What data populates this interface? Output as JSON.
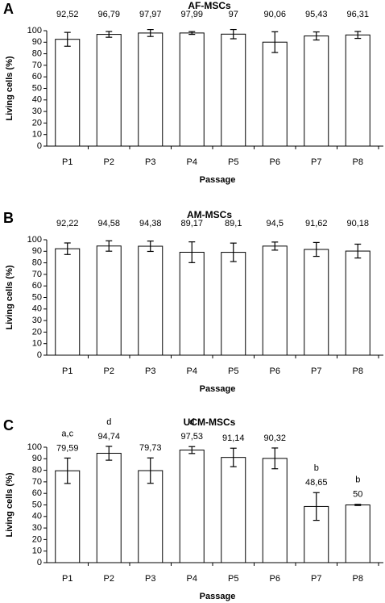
{
  "chart_data": [
    {
      "type": "bar",
      "panel_label": "A",
      "title": "AF-MSCs",
      "x_label": "Passage",
      "y_label": "Living cells (%)",
      "categories": [
        "P1",
        "P2",
        "P3",
        "P4",
        "P5",
        "P6",
        "P7",
        "P8"
      ],
      "values": [
        92.52,
        96.79,
        97.97,
        97.99,
        97,
        90.06,
        95.43,
        96.31
      ],
      "value_labels": [
        "92,52",
        "96,79",
        "97,97",
        "97,99",
        "97",
        "90,06",
        "95,43",
        "96,31"
      ],
      "errors": [
        6,
        2.5,
        3,
        1.2,
        4,
        9,
        3.5,
        3
      ],
      "color": "#ffffff",
      "ylim": [
        0,
        100
      ],
      "yticks": [
        0,
        10,
        20,
        30,
        40,
        50,
        60,
        70,
        80,
        90,
        100
      ]
    },
    {
      "type": "bar",
      "panel_label": "B",
      "title": "AM-MSCs",
      "x_label": "Passage",
      "y_label": "Living cells (%)",
      "categories": [
        "P1",
        "P2",
        "P3",
        "P4",
        "P5",
        "P6",
        "P7",
        "P8"
      ],
      "values": [
        92.22,
        94.58,
        94.38,
        89.17,
        89.1,
        94.5,
        91.62,
        90.18
      ],
      "value_labels": [
        "92,22",
        "94,58",
        "94,38",
        "89,17",
        "89,1",
        "94,5",
        "91,62",
        "90,18"
      ],
      "errors": [
        5,
        4.5,
        4.5,
        9,
        8,
        3.5,
        6,
        6
      ],
      "color": "#ffffff",
      "ylim": [
        0,
        100
      ],
      "yticks": [
        0,
        10,
        20,
        30,
        40,
        50,
        60,
        70,
        80,
        90,
        100
      ]
    },
    {
      "type": "bar",
      "panel_label": "C",
      "title": "UCM-MSCs",
      "x_label": "Passage",
      "y_label": "Living cells (%)",
      "categories": [
        "P1",
        "P2",
        "P3",
        "P4",
        "P5",
        "P6",
        "P7",
        "P8"
      ],
      "values": [
        79.59,
        94.74,
        79.73,
        97.53,
        91.14,
        90.32,
        48.65,
        50
      ],
      "value_labels": [
        "79,59",
        "94,74",
        "79,73",
        "97,53",
        "91,14",
        "90,32",
        "48,65",
        "50"
      ],
      "errors": [
        11,
        6,
        11,
        3,
        8,
        9,
        12,
        0.5
      ],
      "annotations": [
        "a,c",
        "d",
        null,
        "d",
        null,
        null,
        "b",
        "b"
      ],
      "color": "#ffffff",
      "ylim": [
        0,
        100
      ],
      "yticks": [
        0,
        10,
        20,
        30,
        40,
        50,
        60,
        70,
        80,
        90,
        100
      ]
    }
  ]
}
